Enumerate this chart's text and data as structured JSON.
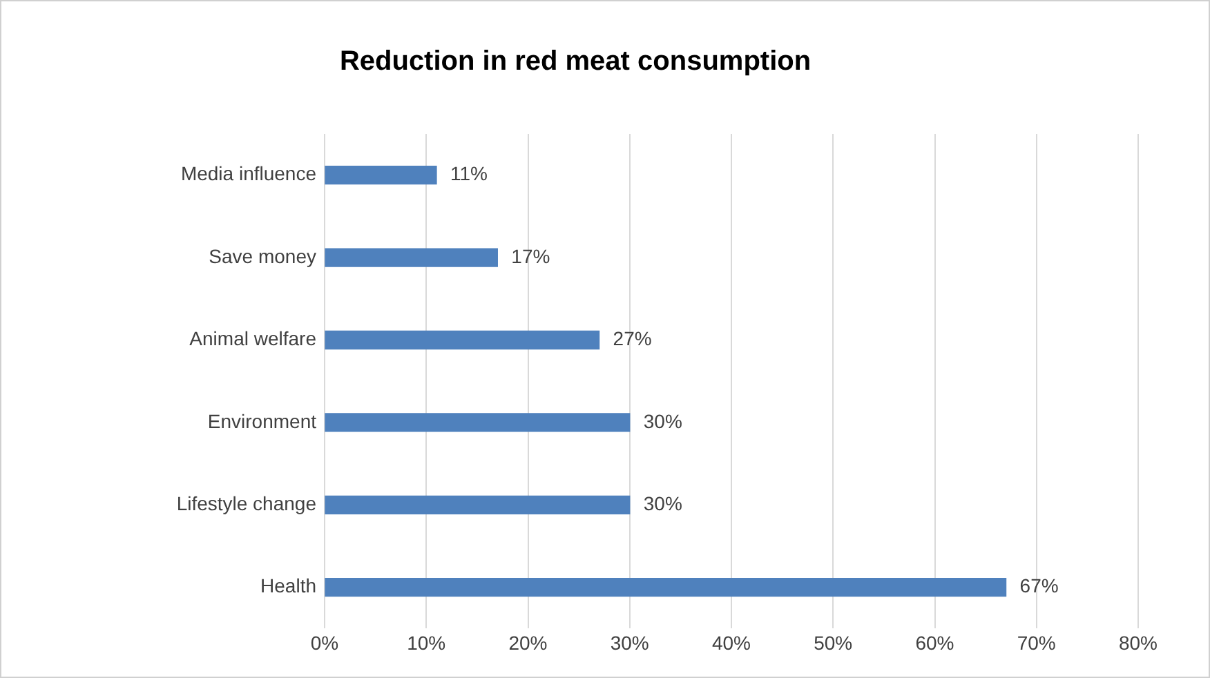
{
  "chart_data": {
    "type": "bar",
    "orientation": "horizontal",
    "title": "Reduction in red meat consumption",
    "categories": [
      "Media influence",
      "Save money",
      "Animal welfare",
      "Environment",
      "Lifestyle change",
      "Health"
    ],
    "values": [
      11,
      17,
      27,
      30,
      30,
      67
    ],
    "value_labels": [
      "11%",
      "17%",
      "27%",
      "30%",
      "30%",
      "67%"
    ],
    "color": "#4f81bd",
    "xlim": [
      0,
      80
    ],
    "xticks": [
      {
        "value": 0,
        "label": "0%"
      },
      {
        "value": 10,
        "label": "10%"
      },
      {
        "value": 20,
        "label": "20%"
      },
      {
        "value": 30,
        "label": "30%"
      },
      {
        "value": 40,
        "label": "40%"
      },
      {
        "value": 50,
        "label": "50%"
      },
      {
        "value": 60,
        "label": "60%"
      },
      {
        "value": 70,
        "label": "70%"
      },
      {
        "value": 80,
        "label": "80%"
      }
    ],
    "grid": "x",
    "legend": false
  }
}
